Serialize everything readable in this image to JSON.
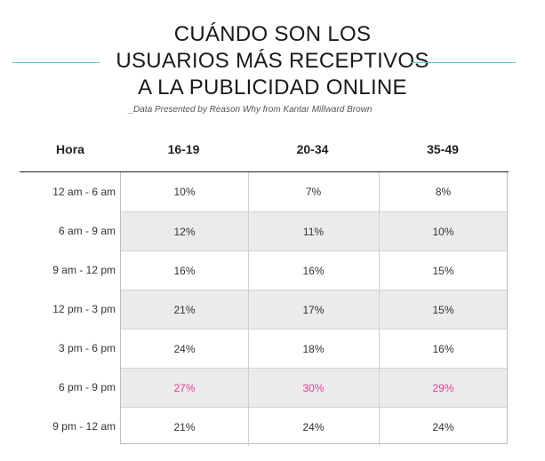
{
  "title_lines": [
    "CUÁNDO SON LOS",
    "USUARIOS MÁS RECEPTIVOS",
    "A LA PUBLICIDAD ONLINE"
  ],
  "subtitle": "_Data Presented by Reason Why from Kantar Millward Brown",
  "colors": {
    "accent_rule": "#5fc3d9",
    "highlight": "#ec3d96",
    "shaded_row": "#ebebeb"
  },
  "chart_data": {
    "type": "table",
    "columns": [
      "Hora",
      "16-19",
      "20-34",
      "35-49"
    ],
    "rows": [
      {
        "label": "12 am - 6 am",
        "values": [
          "10%",
          "7%",
          "8%"
        ],
        "shaded": false,
        "highlight": false
      },
      {
        "label": "6 am - 9 am",
        "values": [
          "12%",
          "11%",
          "10%"
        ],
        "shaded": true,
        "highlight": false
      },
      {
        "label": "9 am - 12 pm",
        "values": [
          "16%",
          "16%",
          "15%"
        ],
        "shaded": false,
        "highlight": false
      },
      {
        "label": "12 pm - 3 pm",
        "values": [
          "21%",
          "17%",
          "15%"
        ],
        "shaded": true,
        "highlight": false
      },
      {
        "label": "3 pm - 6 pm",
        "values": [
          "24%",
          "18%",
          "16%"
        ],
        "shaded": false,
        "highlight": false
      },
      {
        "label": "6 pm - 9 pm",
        "values": [
          "27%",
          "30%",
          "29%"
        ],
        "shaded": true,
        "highlight": true
      },
      {
        "label": "9 pm - 12 am",
        "values": [
          "21%",
          "24%",
          "24%"
        ],
        "shaded": false,
        "highlight": false
      }
    ]
  }
}
